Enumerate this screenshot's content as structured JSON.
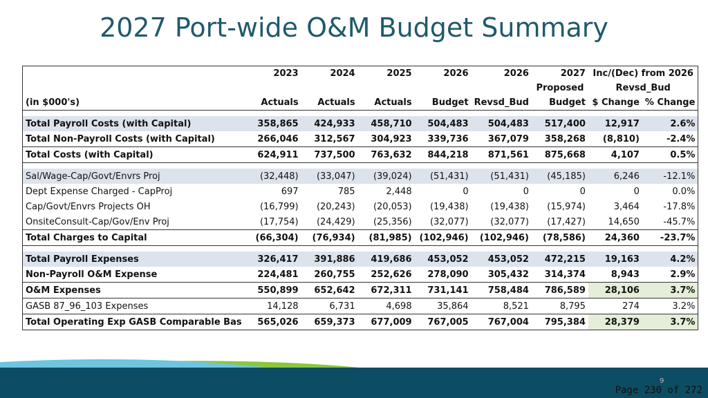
{
  "header": {
    "title": "2027 Port-wide O&M Budget Summary"
  },
  "table": {
    "header_rows": [
      [
        "",
        "2023",
        "2024",
        "2025",
        "2026",
        "2026",
        "2027",
        "Inc/(Dec) from 2026"
      ],
      [
        "",
        "",
        "",
        "",
        "",
        "",
        "Proposed",
        "Revsd_Bud"
      ],
      [
        "(in $000's)",
        "Actuals",
        "Actuals",
        "Actuals",
        "Budget",
        "Revsd_Bud",
        "Budget",
        "$ Change",
        "% Change"
      ]
    ],
    "rows": [
      [
        "Total Payroll Costs (with Capital)",
        "358,865",
        "424,933",
        "458,710",
        "504,483",
        "504,483",
        "517,400",
        "12,917",
        "2.6%"
      ],
      [
        "Total Non-Payroll Costs (with Capital)",
        "266,046",
        "312,567",
        "304,923",
        "339,736",
        "367,079",
        "358,268",
        "(8,810)",
        "-2.4%"
      ],
      [
        "Total Costs (with Capital)",
        "624,911",
        "737,500",
        "763,632",
        "844,218",
        "871,561",
        "875,668",
        "4,107",
        "0.5%"
      ],
      [
        "Sal/Wage-Cap/Govt/Envrs Proj",
        "(32,448)",
        "(33,047)",
        "(39,024)",
        "(51,431)",
        "(51,431)",
        "(45,185)",
        "6,246",
        "-12.1%"
      ],
      [
        "Dept Expense Charged - CapProj",
        "697",
        "785",
        "2,448",
        "0",
        "0",
        "0",
        "0",
        "0.0%"
      ],
      [
        "Cap/Govt/Envrs Projects OH",
        "(16,799)",
        "(20,243)",
        "(20,053)",
        "(19,438)",
        "(19,438)",
        "(15,974)",
        "3,464",
        "-17.8%"
      ],
      [
        "OnsiteConsult-Cap/Gov/Env Proj",
        "(17,754)",
        "(24,429)",
        "(25,356)",
        "(32,077)",
        "(32,077)",
        "(17,427)",
        "14,650",
        "-45.7%"
      ],
      [
        "Total Charges to Capital",
        "(66,304)",
        "(76,934)",
        "(81,985)",
        "(102,946)",
        "(102,946)",
        "(78,586)",
        "24,360",
        "-23.7%"
      ],
      [
        "Total Payroll Expenses",
        "326,417",
        "391,886",
        "419,686",
        "453,052",
        "453,052",
        "472,215",
        "19,163",
        "4.2%"
      ],
      [
        "Non-Payroll O&M Expense",
        "224,481",
        "260,755",
        "252,626",
        "278,090",
        "305,432",
        "314,374",
        "8,943",
        "2.9%"
      ],
      [
        "O&M Expenses",
        "550,899",
        "652,642",
        "672,311",
        "731,141",
        "758,484",
        "786,589",
        "28,106",
        "3.7%"
      ],
      [
        "GASB 87_96_103 Expenses",
        "14,128",
        "6,731",
        "4,698",
        "35,864",
        "8,521",
        "8,795",
        "274",
        "3.2%"
      ],
      [
        "Total Operating Exp GASB Comparable Bas",
        "565,026",
        "659,373",
        "677,009",
        "767,005",
        "767,004",
        "795,384",
        "28,379",
        "3.7%"
      ]
    ]
  },
  "footer": {
    "slide_number": "9",
    "page": "Page 230 of 272"
  }
}
